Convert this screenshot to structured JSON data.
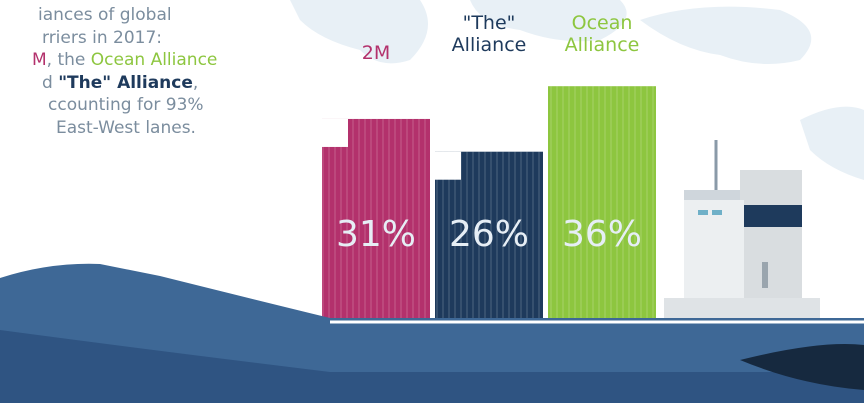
{
  "chart_data": {
    "type": "bar",
    "categories": [
      "2M",
      "\"The\"\nAlliance",
      "Ocean\nAlliance"
    ],
    "values": [
      31,
      26,
      36
    ],
    "value_labels": [
      "31%",
      "26%",
      "36%"
    ],
    "colors": [
      "#b3316c",
      "#1e3a5c",
      "#8dc63f"
    ],
    "annotation": [
      [
        {
          "text": "iances of global",
          "color": "#7b8d9e"
        }
      ],
      [
        {
          "text": "rriers in 2017:",
          "color": "#7b8d9e"
        }
      ],
      [
        {
          "text": "M",
          "color": "#b3316c"
        },
        {
          "text": ", the ",
          "color": "#7b8d9e"
        },
        {
          "text": "Ocean Alliance",
          "color": "#8dc63f"
        }
      ],
      [
        {
          "text": "d ",
          "color": "#7b8d9e"
        },
        {
          "text": "\"The\" Alliance",
          "color": "#1e3a5c"
        },
        {
          "text": ",",
          "color": "#7b8d9e"
        }
      ],
      [
        {
          "text": "ccounting for 93%",
          "color": "#7b8d9e"
        }
      ],
      [
        {
          "text": "East-West lanes.",
          "color": "#7b8d9e"
        }
      ]
    ]
  }
}
